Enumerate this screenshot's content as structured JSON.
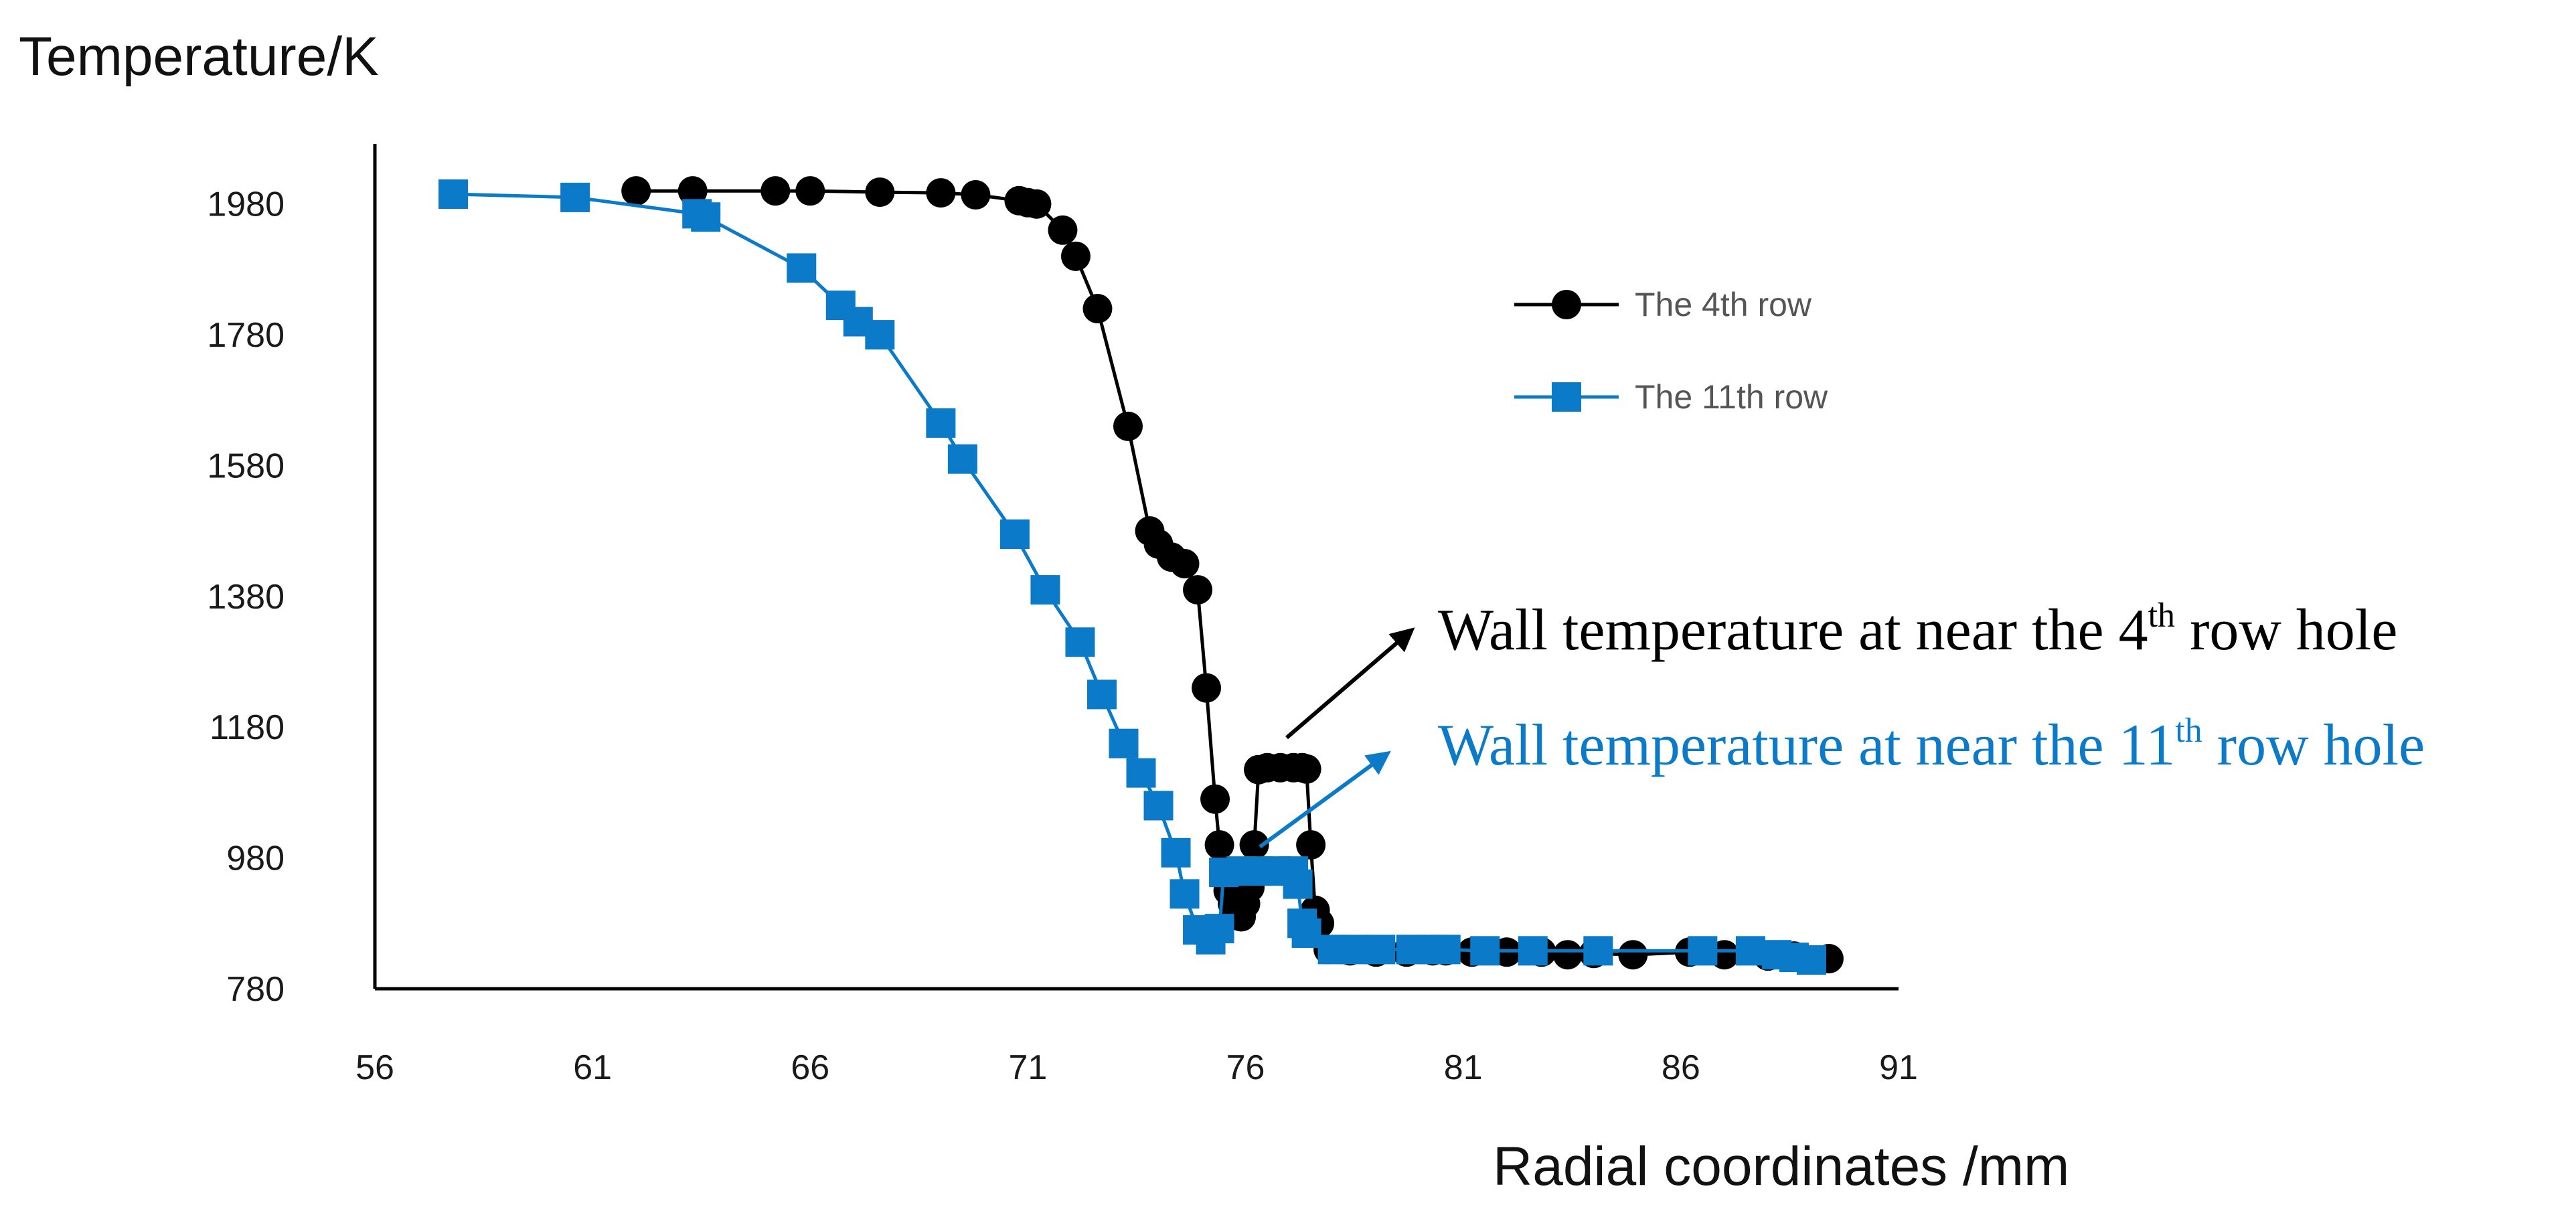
{
  "chart_data": {
    "type": "line",
    "title": "",
    "ylabel": "Temperature/K",
    "xlabel": "Radial coordinates /mm",
    "xlim": [
      56,
      91
    ],
    "ylim": [
      780,
      2080
    ],
    "xticks": [
      "56",
      "61",
      "66",
      "71",
      "76",
      "81",
      "86",
      "91"
    ],
    "yticks": [
      "780",
      "980",
      "1180",
      "1380",
      "1580",
      "1780",
      "1980"
    ],
    "xtick_values": [
      56,
      61,
      66,
      71,
      76,
      81,
      86,
      91
    ],
    "ytick_values": [
      780,
      980,
      1180,
      1380,
      1580,
      1780,
      1980
    ],
    "grid": false,
    "legend_position": "top-right",
    "series": [
      {
        "name": "The 4th row",
        "color": "#000000",
        "marker": "circle",
        "points": [
          [
            62.0,
            2000
          ],
          [
            63.3,
            2000
          ],
          [
            65.2,
            2000
          ],
          [
            66.0,
            2000
          ],
          [
            67.6,
            1998
          ],
          [
            69.0,
            1997
          ],
          [
            69.8,
            1994
          ],
          [
            70.8,
            1985
          ],
          [
            71.0,
            1982
          ],
          [
            71.2,
            1980
          ],
          [
            71.8,
            1940
          ],
          [
            72.1,
            1900
          ],
          [
            72.6,
            1820
          ],
          [
            73.3,
            1640
          ],
          [
            73.8,
            1480
          ],
          [
            74.0,
            1460
          ],
          [
            74.3,
            1440
          ],
          [
            74.6,
            1430
          ],
          [
            74.9,
            1390
          ],
          [
            75.1,
            1240
          ],
          [
            75.3,
            1070
          ],
          [
            75.4,
            1000
          ],
          [
            75.5,
            960
          ],
          [
            75.6,
            930
          ],
          [
            75.7,
            910
          ],
          [
            75.8,
            900
          ],
          [
            75.9,
            890
          ],
          [
            76.0,
            910
          ],
          [
            76.1,
            935
          ],
          [
            76.2,
            1000
          ],
          [
            76.3,
            1115
          ],
          [
            76.5,
            1118
          ],
          [
            76.8,
            1118
          ],
          [
            77.1,
            1118
          ],
          [
            77.3,
            1118
          ],
          [
            77.4,
            1116
          ],
          [
            77.5,
            1000
          ],
          [
            77.6,
            900
          ],
          [
            77.7,
            880
          ],
          [
            77.9,
            840
          ],
          [
            78.4,
            838
          ],
          [
            79.0,
            836
          ],
          [
            79.7,
            836
          ],
          [
            80.3,
            838
          ],
          [
            80.6,
            838
          ],
          [
            81.2,
            836
          ],
          [
            82.0,
            836
          ],
          [
            82.8,
            836
          ],
          [
            83.4,
            832
          ],
          [
            84.0,
            834
          ],
          [
            84.9,
            832
          ],
          [
            86.2,
            836
          ],
          [
            87.0,
            832
          ],
          [
            88.0,
            830
          ],
          [
            88.6,
            830
          ],
          [
            89.4,
            826
          ]
        ]
      },
      {
        "name": "The 11th row",
        "color": "#0b7ac9",
        "marker": "square",
        "points": [
          [
            57.8,
            1995
          ],
          [
            60.6,
            1990
          ],
          [
            63.4,
            1965
          ],
          [
            63.6,
            1960
          ],
          [
            65.8,
            1882
          ],
          [
            66.7,
            1825
          ],
          [
            67.1,
            1800
          ],
          [
            67.6,
            1780
          ],
          [
            69.0,
            1645
          ],
          [
            69.5,
            1590
          ],
          [
            70.7,
            1475
          ],
          [
            71.4,
            1390
          ],
          [
            72.2,
            1310
          ],
          [
            72.7,
            1230
          ],
          [
            73.2,
            1155
          ],
          [
            73.6,
            1110
          ],
          [
            74.0,
            1060
          ],
          [
            74.4,
            988
          ],
          [
            74.6,
            925
          ],
          [
            74.9,
            870
          ],
          [
            75.2,
            855
          ],
          [
            75.4,
            872
          ],
          [
            75.5,
            958
          ],
          [
            75.9,
            960
          ],
          [
            76.3,
            960
          ],
          [
            76.7,
            960
          ],
          [
            77.1,
            960
          ],
          [
            77.2,
            940
          ],
          [
            77.3,
            880
          ],
          [
            77.4,
            865
          ],
          [
            78.0,
            840
          ],
          [
            78.5,
            840
          ],
          [
            79.1,
            840
          ],
          [
            79.8,
            840
          ],
          [
            80.3,
            840
          ],
          [
            80.6,
            840
          ],
          [
            81.5,
            838
          ],
          [
            82.6,
            838
          ],
          [
            84.1,
            838
          ],
          [
            86.5,
            838
          ],
          [
            87.6,
            838
          ],
          [
            88.2,
            832
          ],
          [
            88.6,
            828
          ],
          [
            89.0,
            824
          ]
        ]
      }
    ],
    "annotations": [
      {
        "text_pre": "Wall temperature at near the 4",
        "sup": "th",
        "text_post": " row hole",
        "color": "#000000"
      },
      {
        "text_pre": "Wall temperature at near the 11",
        "sup": "th",
        "text_post": " row hole",
        "color": "#0b7ac9"
      }
    ]
  }
}
